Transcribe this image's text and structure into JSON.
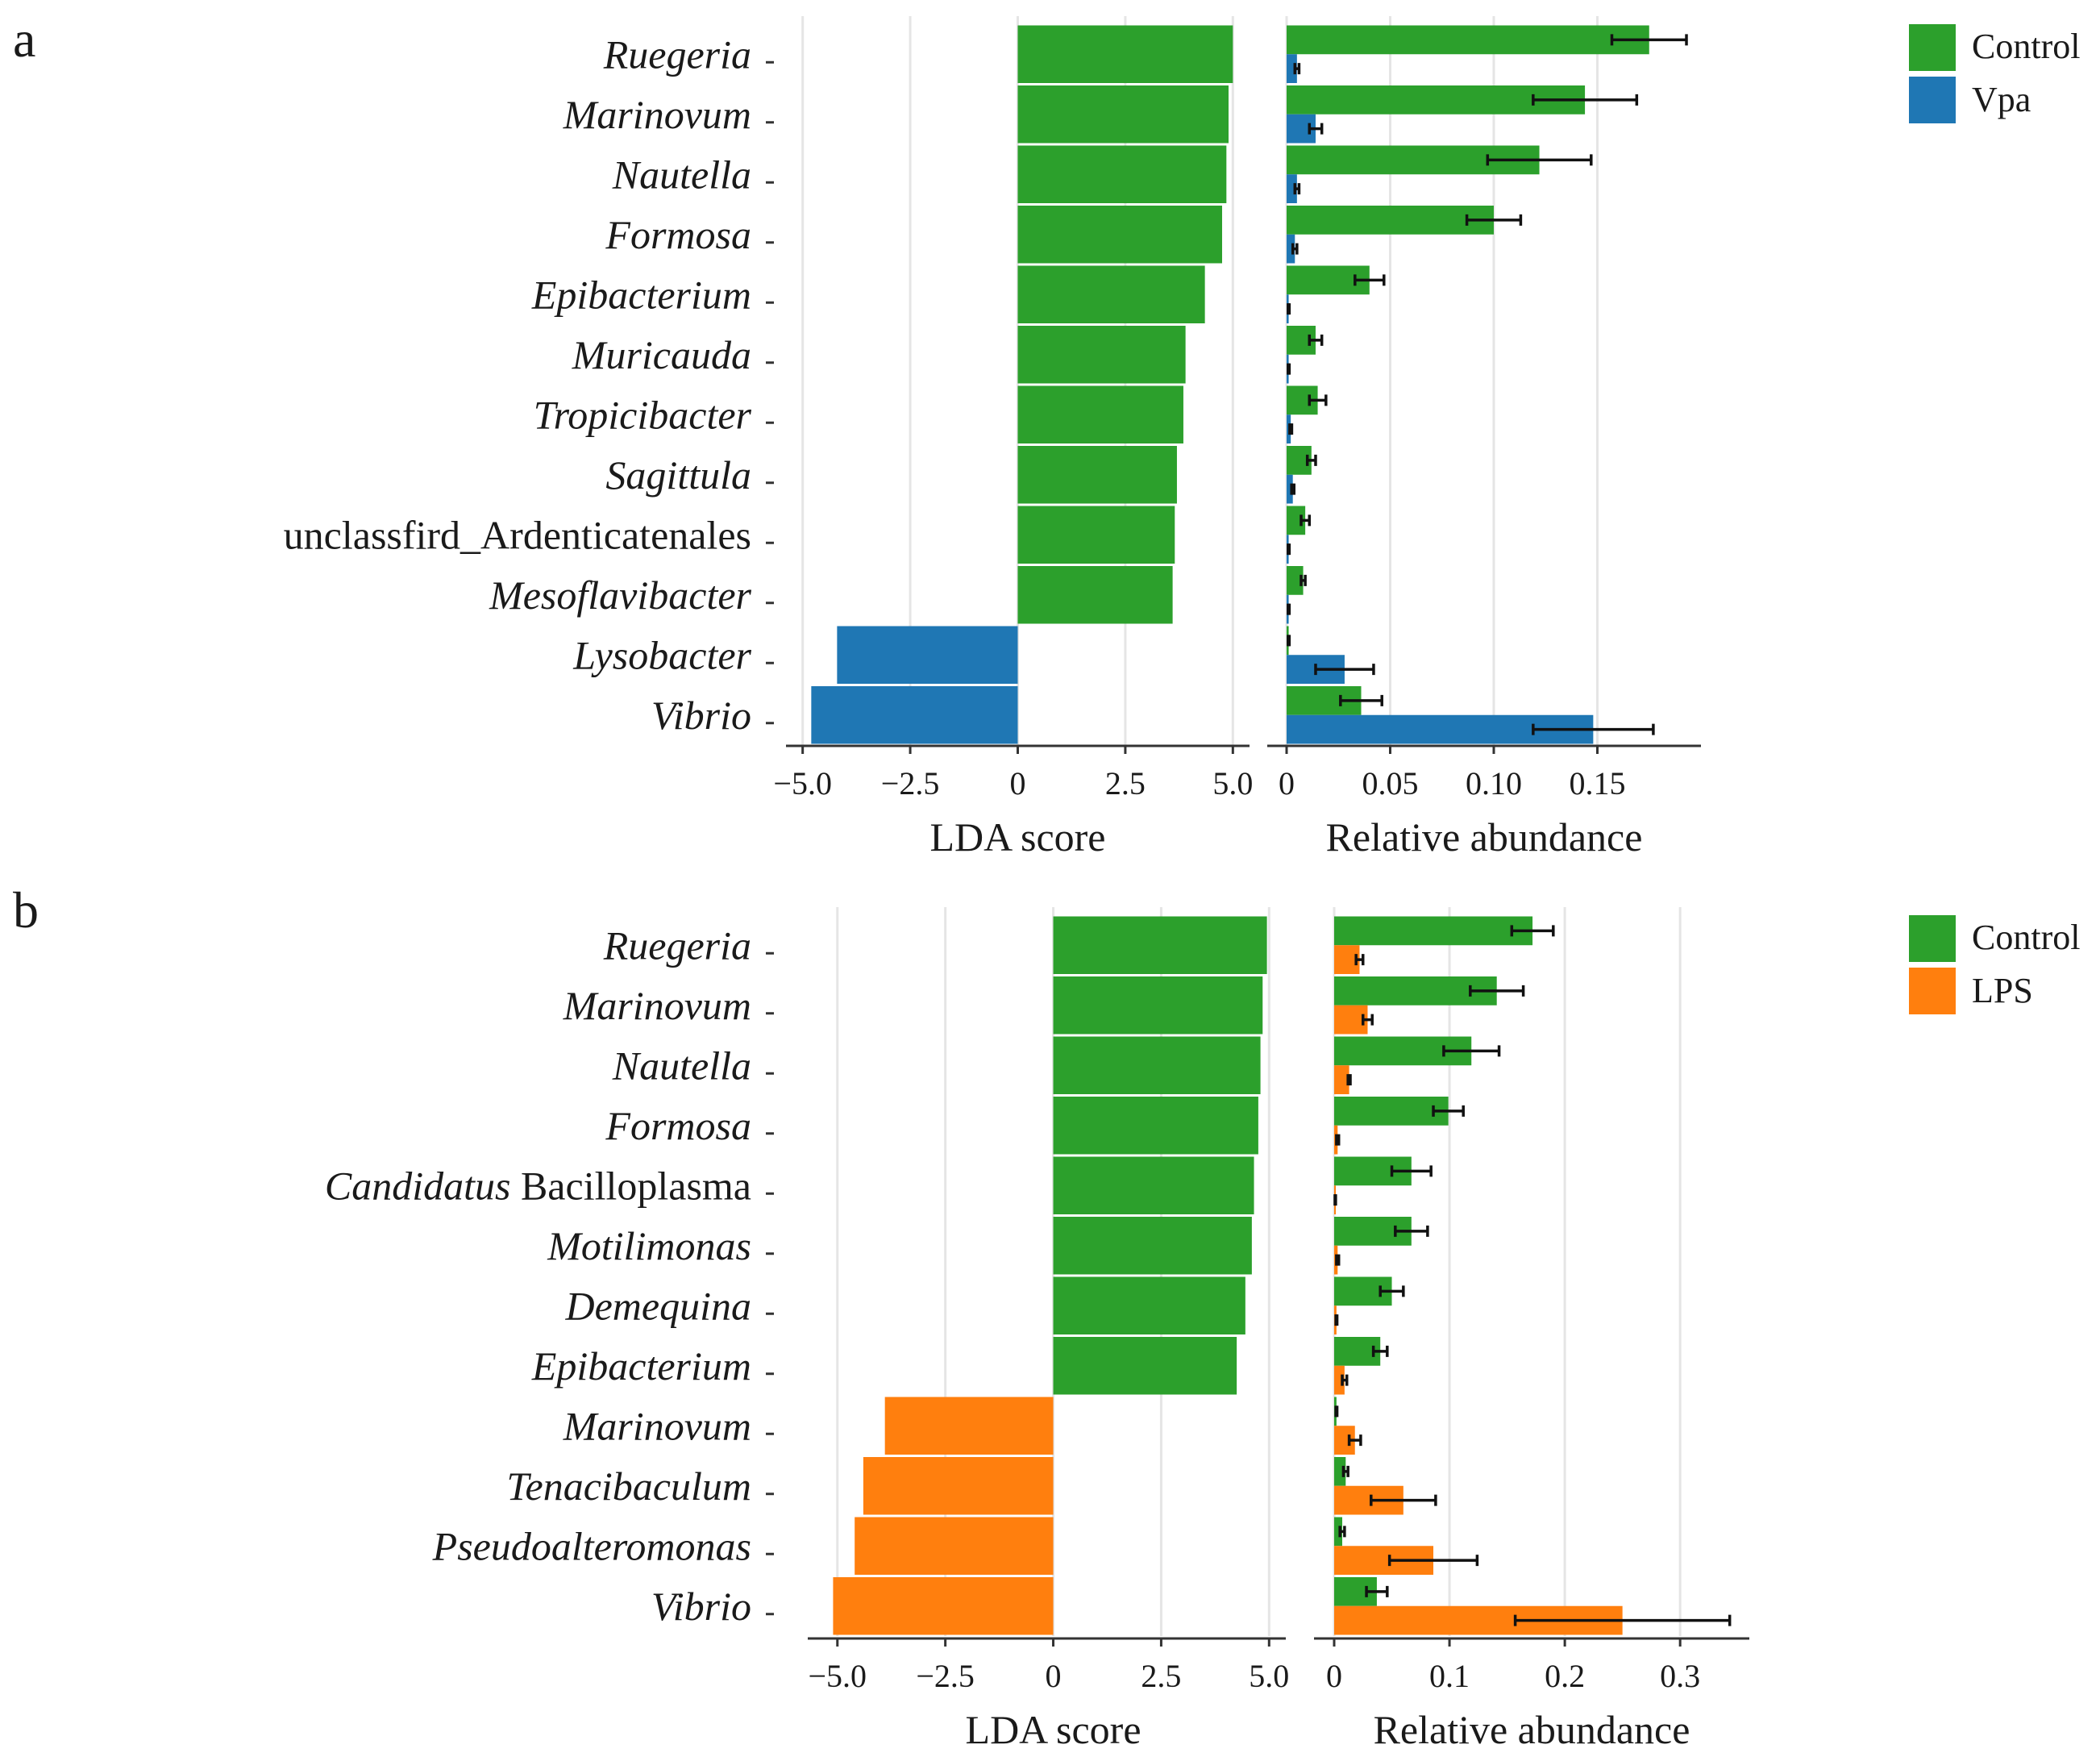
{
  "colors": {
    "control": "#2ca02c",
    "vpa": "#1f77b4",
    "lps": "#ff7f0e"
  },
  "chart_data": [
    {
      "panel": "a",
      "type": "bar",
      "subtype": "diverging-horizontal",
      "xlabel": "LDA score",
      "xlim": [
        -5.2,
        5.2
      ],
      "ticks": [
        -5.0,
        -2.5,
        0,
        2.5,
        5.0
      ],
      "tick_labels": [
        "−5.0",
        "−2.5",
        "0",
        "2.5",
        "5.0"
      ],
      "categories": [
        {
          "parts": [
            {
              "text": "Ruegeria",
              "italic": true
            }
          ]
        },
        {
          "parts": [
            {
              "text": "Marinovum",
              "italic": true
            }
          ]
        },
        {
          "parts": [
            {
              "text": "Nautella",
              "italic": true
            }
          ]
        },
        {
          "parts": [
            {
              "text": "Formosa",
              "italic": true
            }
          ]
        },
        {
          "parts": [
            {
              "text": "Epibacterium",
              "italic": true
            }
          ]
        },
        {
          "parts": [
            {
              "text": "Muricauda",
              "italic": true
            }
          ]
        },
        {
          "parts": [
            {
              "text": "Tropicibacter",
              "italic": true
            }
          ]
        },
        {
          "parts": [
            {
              "text": "Sagittula",
              "italic": true
            }
          ]
        },
        {
          "parts": [
            {
              "text": "unclassfird_Ardenticatenales",
              "italic": false
            }
          ]
        },
        {
          "parts": [
            {
              "text": "Mesoflavibacter",
              "italic": true
            }
          ]
        },
        {
          "parts": [
            {
              "text": "Lysobacter",
              "italic": true
            }
          ]
        },
        {
          "parts": [
            {
              "text": "Vibrio",
              "italic": true
            }
          ]
        }
      ],
      "values": [
        5.0,
        4.9,
        4.85,
        4.75,
        4.35,
        3.9,
        3.85,
        3.7,
        3.65,
        3.6,
        -4.2,
        -4.8
      ],
      "groups": [
        "Control",
        "Control",
        "Control",
        "Control",
        "Control",
        "Control",
        "Control",
        "Control",
        "Control",
        "Control",
        "Vpa",
        "Vpa"
      ]
    },
    {
      "panel": "a",
      "type": "bar",
      "subtype": "grouped-horizontal",
      "xlabel": "Relative abundance",
      "xlim": [
        0,
        0.2
      ],
      "ticks": [
        0,
        0.05,
        0.1,
        0.15
      ],
      "tick_labels": [
        "0",
        "0.05",
        "0.10",
        "0.15"
      ],
      "series": [
        {
          "name": "Control",
          "values": [
            0.175,
            0.144,
            0.122,
            0.1,
            0.04,
            0.014,
            0.015,
            0.012,
            0.009,
            0.008,
            0.001,
            0.036
          ],
          "errors": [
            0.018,
            0.025,
            0.025,
            0.013,
            0.007,
            0.003,
            0.004,
            0.002,
            0.002,
            0.001,
            0.0003,
            0.01
          ]
        },
        {
          "name": "Vpa",
          "values": [
            0.005,
            0.014,
            0.005,
            0.004,
            0.001,
            0.001,
            0.002,
            0.003,
            0.001,
            0.001,
            0.028,
            0.148
          ],
          "errors": [
            0.001,
            0.003,
            0.001,
            0.001,
            0.0003,
            0.0003,
            0.0005,
            0.0006,
            0.0003,
            0.0003,
            0.014,
            0.029
          ]
        }
      ]
    },
    {
      "panel": "b",
      "type": "bar",
      "subtype": "diverging-horizontal",
      "xlabel": "LDA score",
      "xlim": [
        -5.5,
        5.2
      ],
      "ticks": [
        -5.0,
        -2.5,
        0,
        2.5,
        5.0
      ],
      "tick_labels": [
        "−5.0",
        "−2.5",
        "0",
        "2.5",
        "5.0"
      ],
      "categories": [
        {
          "parts": [
            {
              "text": "Ruegeria",
              "italic": true
            }
          ]
        },
        {
          "parts": [
            {
              "text": "Marinovum",
              "italic": true
            }
          ]
        },
        {
          "parts": [
            {
              "text": "Nautella",
              "italic": true
            }
          ]
        },
        {
          "parts": [
            {
              "text": "Formosa",
              "italic": true
            }
          ]
        },
        {
          "parts": [
            {
              "text": "Candidatus",
              "italic": true
            },
            {
              "text": " Bacilloplasma",
              "italic": false
            }
          ]
        },
        {
          "parts": [
            {
              "text": "Motilimonas",
              "italic": true
            }
          ]
        },
        {
          "parts": [
            {
              "text": "Demequina",
              "italic": true
            }
          ]
        },
        {
          "parts": [
            {
              "text": "Epibacterium",
              "italic": true
            }
          ]
        },
        {
          "parts": [
            {
              "text": "Marinovum",
              "italic": true
            }
          ]
        },
        {
          "parts": [
            {
              "text": "Tenacibaculum",
              "italic": true
            }
          ]
        },
        {
          "parts": [
            {
              "text": "Pseudoalteromonas",
              "italic": true
            }
          ]
        },
        {
          "parts": [
            {
              "text": "Vibrio",
              "italic": true
            }
          ]
        }
      ],
      "values": [
        4.95,
        4.85,
        4.8,
        4.75,
        4.65,
        4.6,
        4.45,
        4.25,
        -3.9,
        -4.4,
        -4.6,
        -5.1
      ],
      "groups": [
        "Control",
        "Control",
        "Control",
        "Control",
        "Control",
        "Control",
        "Control",
        "Control",
        "LPS",
        "LPS",
        "LPS",
        "LPS"
      ]
    },
    {
      "panel": "b",
      "type": "bar",
      "subtype": "grouped-horizontal",
      "xlabel": "Relative abundance",
      "xlim": [
        0,
        0.36
      ],
      "ticks": [
        0,
        0.1,
        0.2,
        0.3
      ],
      "tick_labels": [
        "0",
        "0.1",
        "0.2",
        "0.3"
      ],
      "series": [
        {
          "name": "Control",
          "values": [
            0.172,
            0.141,
            0.119,
            0.099,
            0.067,
            0.067,
            0.05,
            0.04,
            0.002,
            0.01,
            0.007,
            0.037
          ],
          "errors": [
            0.018,
            0.023,
            0.024,
            0.013,
            0.017,
            0.014,
            0.01,
            0.006,
            0.0005,
            0.002,
            0.002,
            0.009
          ]
        },
        {
          "name": "LPS",
          "values": [
            0.022,
            0.029,
            0.013,
            0.003,
            0.001,
            0.003,
            0.002,
            0.009,
            0.018,
            0.06,
            0.086,
            0.25
          ],
          "errors": [
            0.003,
            0.004,
            0.001,
            0.001,
            0.0003,
            0.001,
            0.0005,
            0.002,
            0.005,
            0.028,
            0.038,
            0.093
          ]
        }
      ]
    }
  ],
  "panels": [
    {
      "letter": "a",
      "legend": [
        {
          "name": "Control",
          "color_key": "control"
        },
        {
          "name": "Vpa",
          "color_key": "vpa"
        }
      ]
    },
    {
      "letter": "b",
      "legend": [
        {
          "name": "Control",
          "color_key": "control"
        },
        {
          "name": "LPS",
          "color_key": "lps"
        }
      ]
    }
  ]
}
